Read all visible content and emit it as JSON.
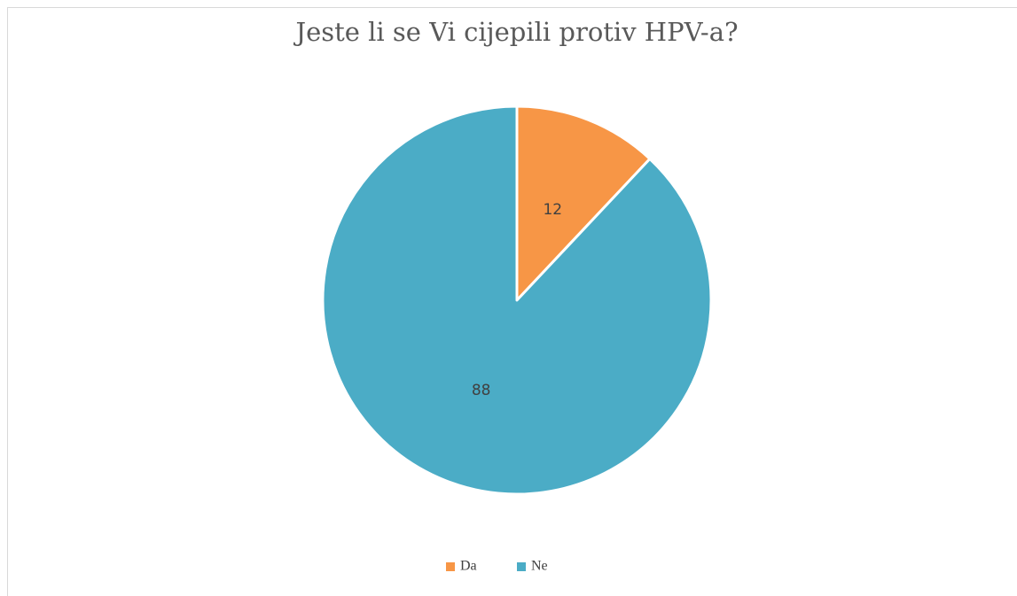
{
  "chart_data": {
    "type": "pie",
    "title": "Jeste li se Vi cijepili protiv HPV-a?",
    "categories": [
      "Da",
      "Ne"
    ],
    "values": [
      12,
      88
    ],
    "colors": [
      "#f79646",
      "#4bacc6"
    ],
    "legend": "bottom"
  }
}
